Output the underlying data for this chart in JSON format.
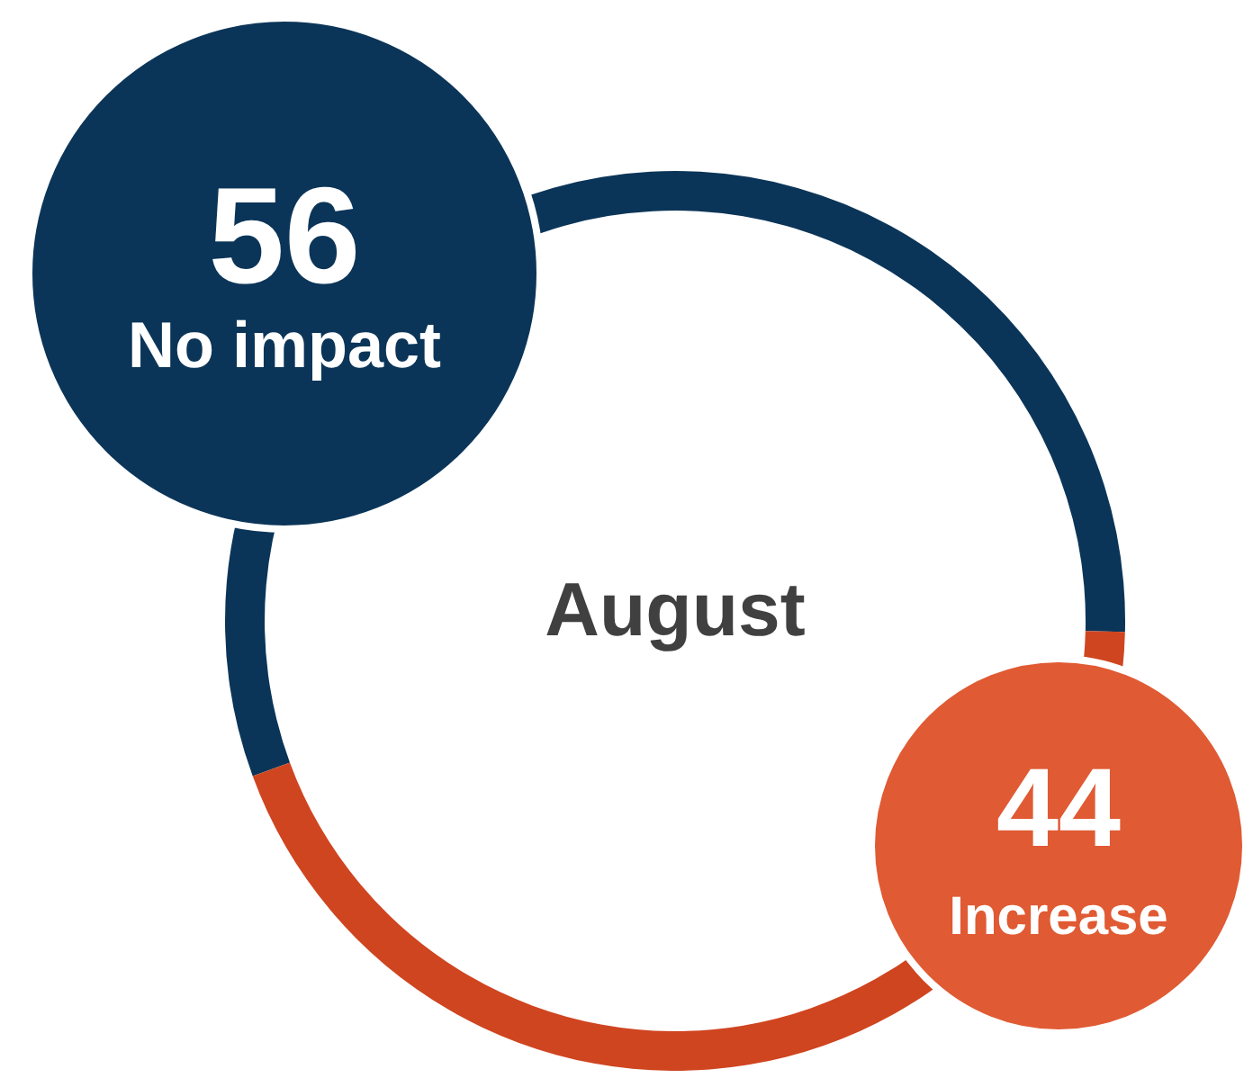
{
  "chart_data": {
    "type": "donut",
    "title": "August",
    "categories": [
      "No impact",
      "Increase"
    ],
    "values": [
      56,
      44
    ],
    "colors": [
      "#0b3558",
      "#cf4520"
    ],
    "data_labels": true
  }
}
